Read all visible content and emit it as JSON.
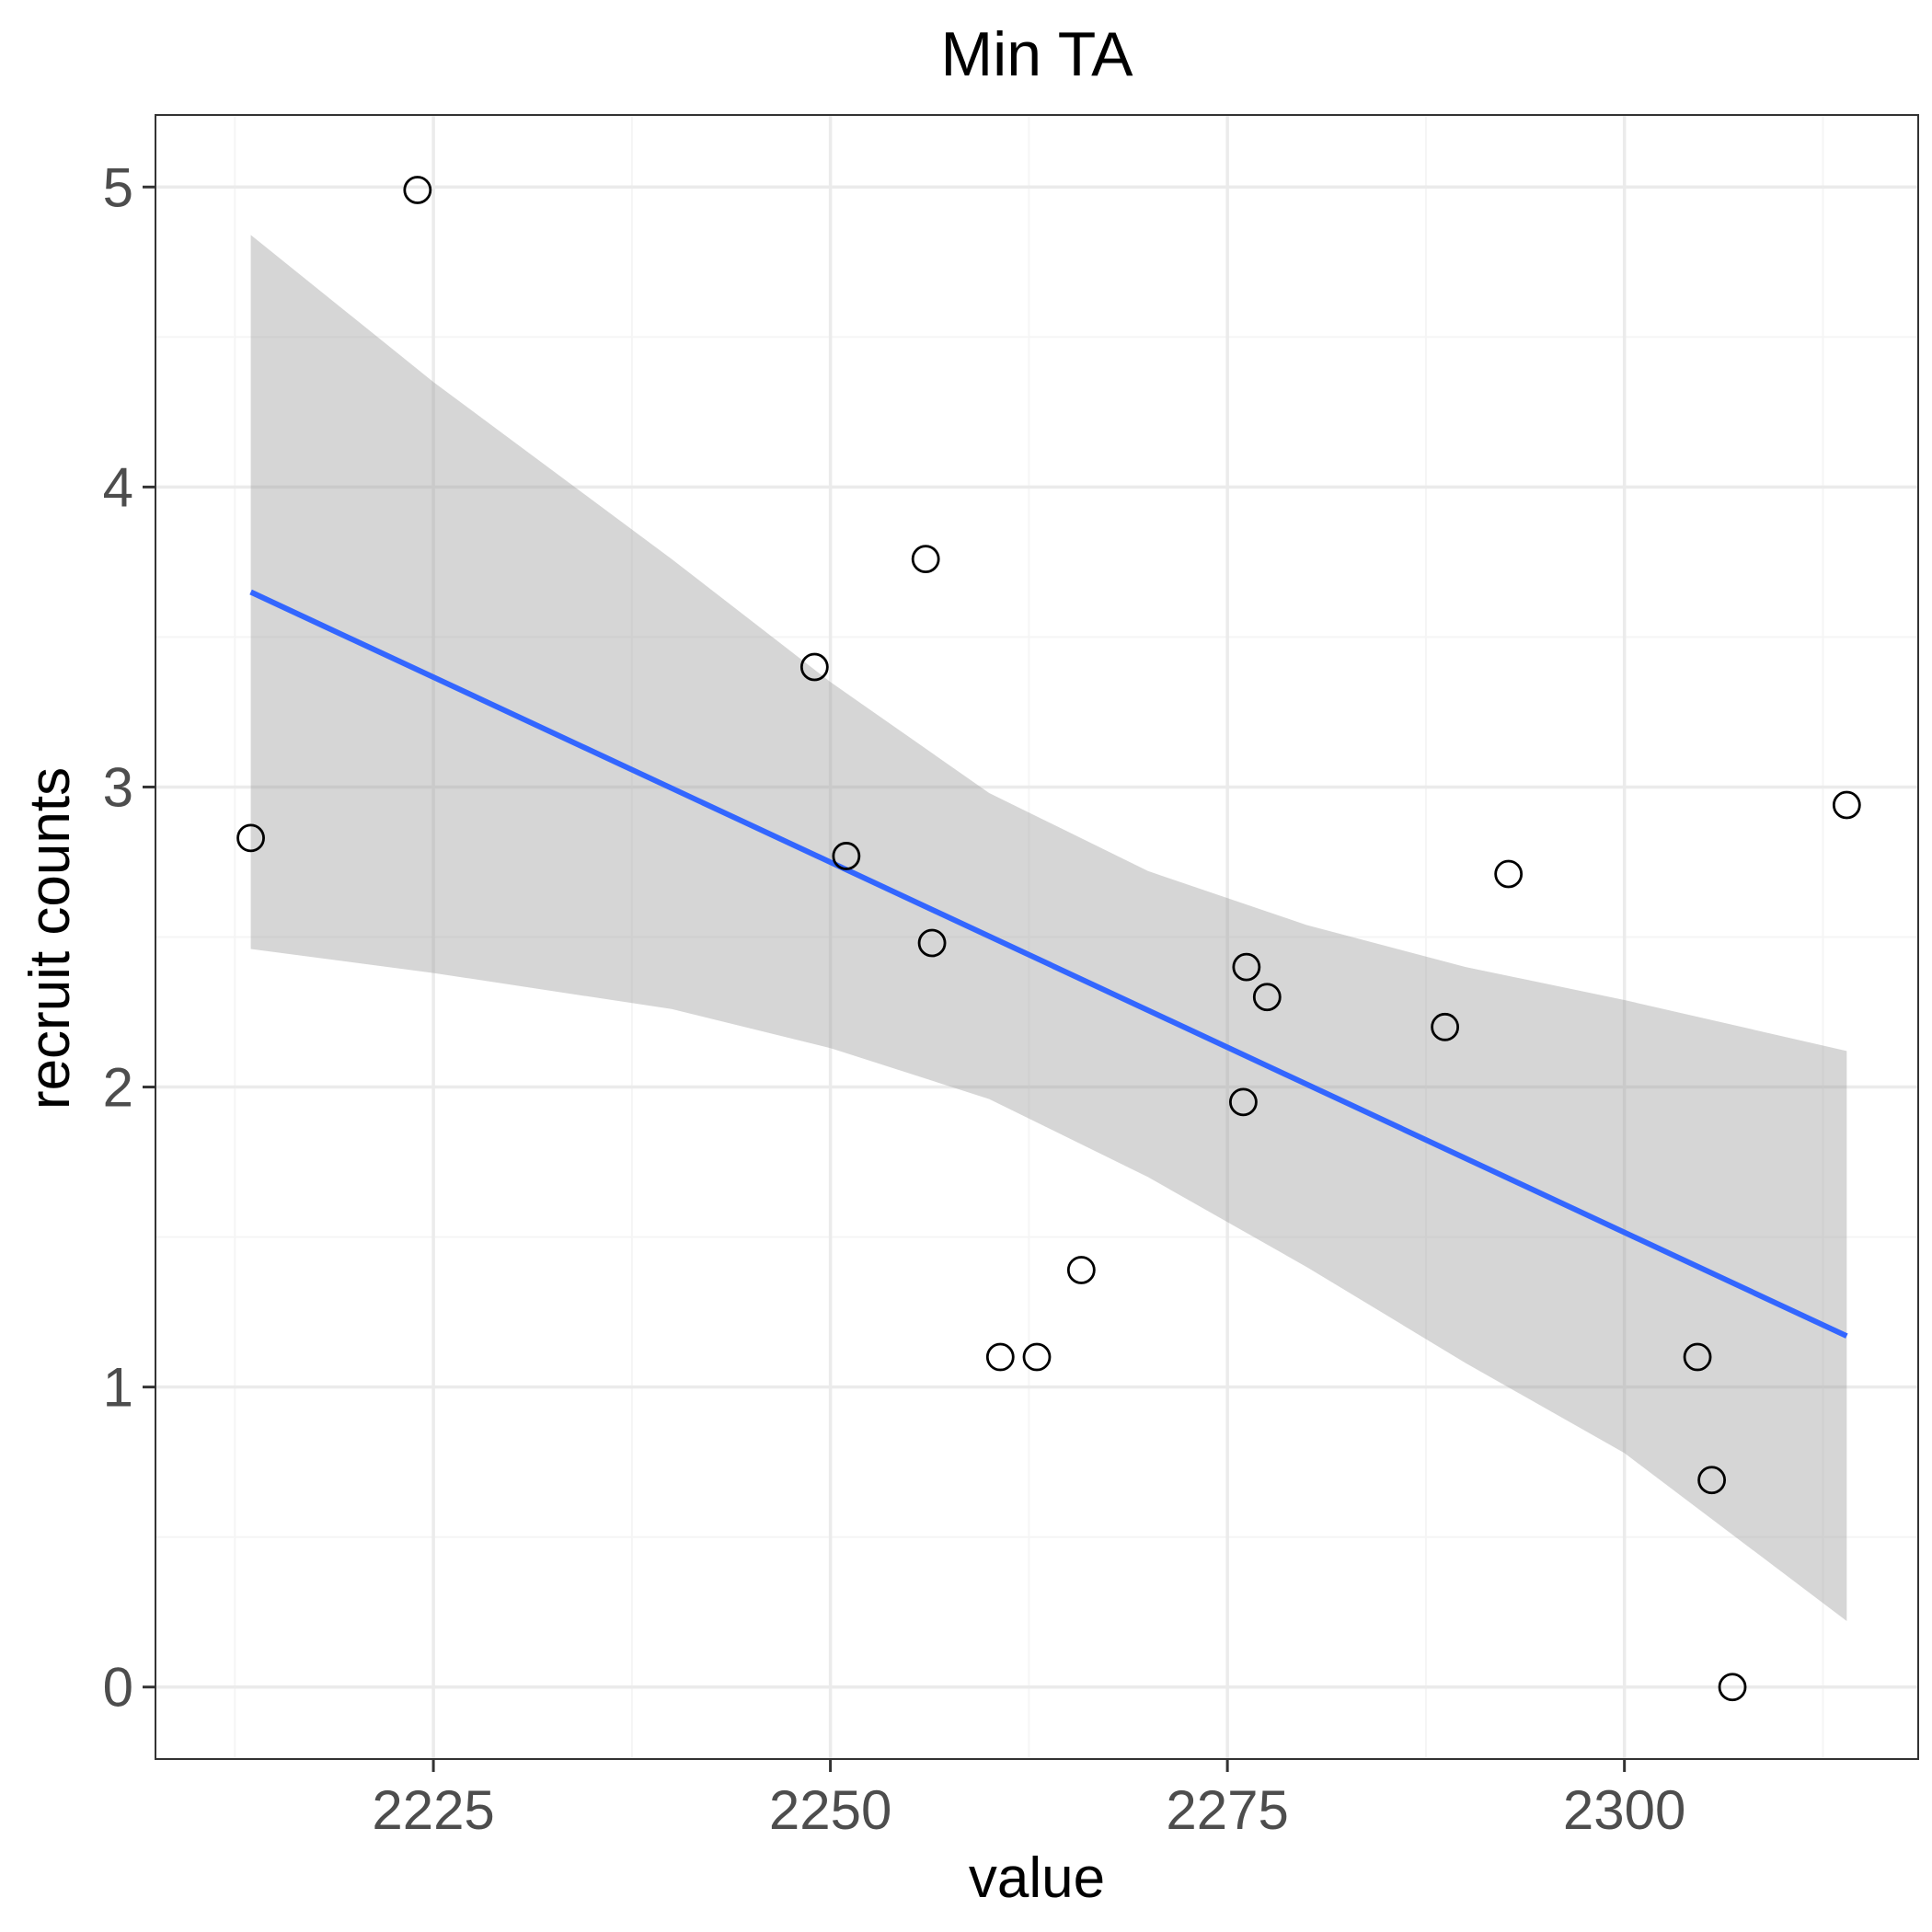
{
  "chart_data": {
    "type": "scatter",
    "title": "Min TA",
    "xlabel": "value",
    "ylabel": "recruit counts",
    "xlim": [
      2207.5,
      2318.5
    ],
    "ylim": [
      -0.24,
      5.24
    ],
    "x_ticks": [
      2225,
      2250,
      2275,
      2300
    ],
    "x_tick_labels": [
      "2225",
      "2250",
      "2275",
      "2300"
    ],
    "x_minor": [
      2212.5,
      2237.5,
      2262.5,
      2287.5,
      2312.5
    ],
    "y_ticks": [
      0,
      1,
      2,
      3,
      4,
      5
    ],
    "y_tick_labels": [
      "0",
      "1",
      "2",
      "3",
      "4",
      "5"
    ],
    "y_minor": [
      0.5,
      1.5,
      2.5,
      3.5,
      4.5
    ],
    "grid": true,
    "points": [
      {
        "x": 2213.5,
        "y": 2.83
      },
      {
        "x": 2224.0,
        "y": 4.99
      },
      {
        "x": 2249.0,
        "y": 3.4
      },
      {
        "x": 2251.0,
        "y": 2.77
      },
      {
        "x": 2256.0,
        "y": 3.76
      },
      {
        "x": 2256.4,
        "y": 2.48
      },
      {
        "x": 2260.7,
        "y": 1.1
      },
      {
        "x": 2263.0,
        "y": 1.1
      },
      {
        "x": 2265.8,
        "y": 1.39
      },
      {
        "x": 2276.0,
        "y": 1.95
      },
      {
        "x": 2276.2,
        "y": 2.4
      },
      {
        "x": 2277.5,
        "y": 2.3
      },
      {
        "x": 2288.7,
        "y": 2.2
      },
      {
        "x": 2292.7,
        "y": 2.71
      },
      {
        "x": 2304.6,
        "y": 1.1
      },
      {
        "x": 2305.5,
        "y": 0.69
      },
      {
        "x": 2306.8,
        "y": 0.0
      },
      {
        "x": 2314.0,
        "y": 2.94
      }
    ],
    "fit_line": {
      "x": [
        2213.5,
        2314.0
      ],
      "y": [
        3.65,
        1.17
      ]
    },
    "ci_band": {
      "x": [
        2213.5,
        2225,
        2240,
        2250,
        2260,
        2270,
        2280,
        2290,
        2300,
        2314
      ],
      "upper": [
        4.84,
        4.35,
        3.76,
        3.35,
        2.98,
        2.72,
        2.54,
        2.4,
        2.29,
        2.12
      ],
      "lower": [
        2.46,
        2.38,
        2.26,
        2.13,
        1.96,
        1.7,
        1.4,
        1.08,
        0.78,
        0.22
      ]
    },
    "colors": {
      "fit_line": "#3366ff",
      "ci_band": "#999999",
      "point_stroke": "#000000",
      "grid_major": "#ebebeb",
      "grid_minor": "#f5f5f5",
      "panel_border": "#333333"
    }
  }
}
